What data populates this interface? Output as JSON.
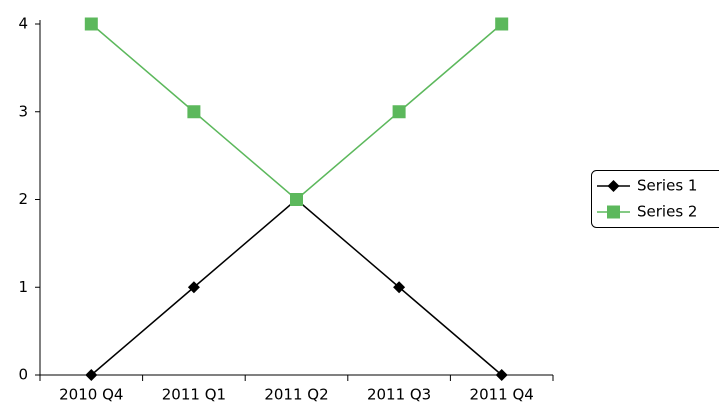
{
  "chart_data": {
    "type": "line",
    "categories": [
      "2010 Q4",
      "2011 Q1",
      "2011 Q2",
      "2011 Q3",
      "2011 Q4"
    ],
    "series": [
      {
        "name": "Series 1",
        "color": "#000000",
        "marker": "diamond",
        "values": [
          0,
          1,
          2,
          1,
          0
        ]
      },
      {
        "name": "Series 2",
        "color": "#5cb85c",
        "marker": "square",
        "values": [
          4,
          3,
          2,
          3,
          4
        ]
      }
    ],
    "ylim": [
      0,
      4
    ],
    "yticks": [
      0,
      1,
      2,
      3,
      4
    ],
    "grid": false,
    "legend": "right"
  }
}
